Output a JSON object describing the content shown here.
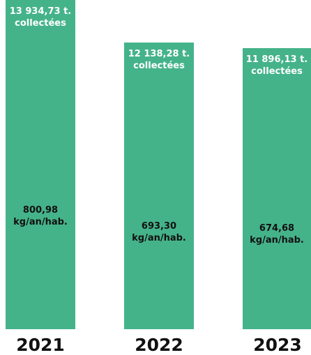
{
  "chart_data": {
    "type": "bar",
    "categories": [
      "2021",
      "2022",
      "2023"
    ],
    "values": [
      13934.73,
      12138.28,
      11896.13
    ],
    "value_labels": [
      "13 934,73 t. collectées",
      "12 138,28 t. collectées",
      "11 896,13 t. collectées"
    ],
    "per_capita_values": [
      800.98,
      693.3,
      674.68
    ],
    "per_capita_labels": [
      "800,98 kg/an/hab.",
      "693,30 kg/an/hab.",
      "674,68 kg/an/hab."
    ],
    "color": "#45b38a"
  }
}
